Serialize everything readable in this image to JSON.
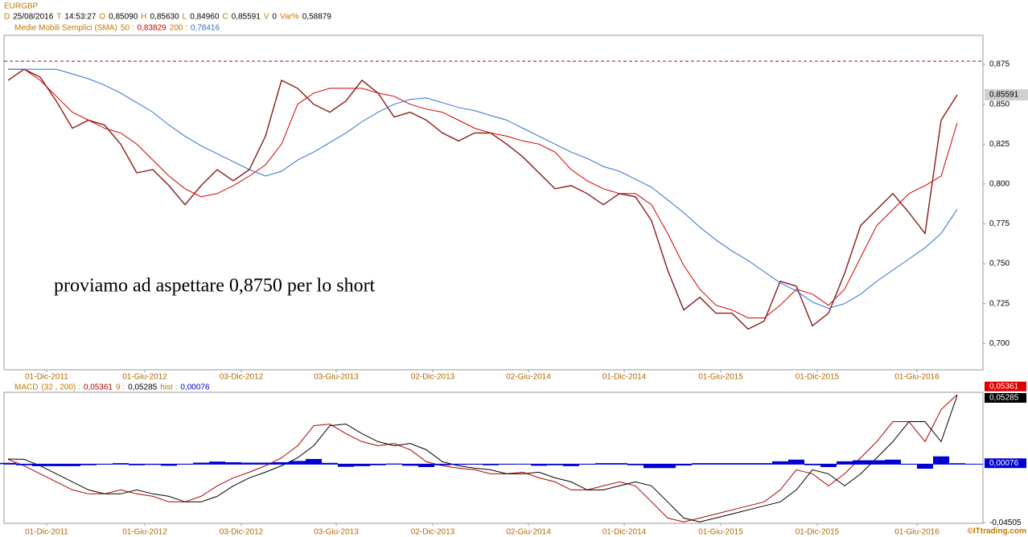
{
  "symbol": "EURGBP",
  "quote": [
    {
      "key": "D",
      "text": "25/08/2016"
    },
    {
      "key": "T",
      "text": "14:53:27"
    },
    {
      "key": "O",
      "text": "0,85090"
    },
    {
      "key": "H",
      "text": "0,85630"
    },
    {
      "key": "L",
      "text": "0,84960"
    },
    {
      "key": "C",
      "text": "0,85591"
    },
    {
      "key": "V",
      "text": "0"
    },
    {
      "key": "Var%",
      "text": "0,58879"
    }
  ],
  "watermark": "©ITtrading.com",
  "chart_data": [
    {
      "type": "line",
      "title": "Medie Mobili Semplici (SMA)",
      "annotation": "proviamo ad aspettare 0,8750 per lo short",
      "hline": {
        "value": 0.877,
        "color": "#8b1a1a"
      },
      "last_label": {
        "value": 0.85591,
        "label": "0,85591"
      },
      "xlim": [
        -0.25,
        60.6
      ],
      "ylim": [
        0.6835,
        0.8932
      ],
      "xticks": [
        {
          "value": 2.4,
          "label": "01-Dic-2011"
        },
        {
          "value": 8.5,
          "label": "01-Giu-2012"
        },
        {
          "value": 14.5,
          "label": "03-Dic-2012"
        },
        {
          "value": 20.4,
          "label": "03-Giu-2013"
        },
        {
          "value": 26.4,
          "label": "02-Dic-2013"
        },
        {
          "value": 32.35,
          "label": "02-Giu-2014"
        },
        {
          "value": 38.3,
          "label": "01-Dic-2014"
        },
        {
          "value": 44.3,
          "label": "01-Giu-2015"
        },
        {
          "value": 50.3,
          "label": "01-Dic-2015"
        },
        {
          "value": 56.5,
          "label": "01-Giu-2016"
        }
      ],
      "yticks": [
        {
          "value": 0.875,
          "label": "0,875"
        },
        {
          "value": 0.85,
          "label": "0,850"
        },
        {
          "value": 0.825,
          "label": "0,825"
        },
        {
          "value": 0.8,
          "label": "0,800"
        },
        {
          "value": 0.775,
          "label": "0,775"
        },
        {
          "value": 0.75,
          "label": "0,750"
        },
        {
          "value": 0.725,
          "label": "0,725"
        },
        {
          "value": 0.7,
          "label": "0,700"
        }
      ],
      "grid": false,
      "series": [
        {
          "color": "#8b1a1a",
          "values": [
            0.865,
            0.872,
            0.867,
            0.852,
            0.835,
            0.84,
            0.837,
            0.825,
            0.807,
            0.809,
            0.799,
            0.787,
            0.799,
            0.809,
            0.802,
            0.809,
            0.83,
            0.865,
            0.86,
            0.85,
            0.845,
            0.852,
            0.865,
            0.857,
            0.842,
            0.845,
            0.84,
            0.832,
            0.827,
            0.832,
            0.832,
            0.825,
            0.817,
            0.807,
            0.797,
            0.799,
            0.794,
            0.787,
            0.794,
            0.792,
            0.777,
            0.746,
            0.721,
            0.729,
            0.719,
            0.719,
            0.709,
            0.714,
            0.739,
            0.736,
            0.711,
            0.719,
            0.744,
            0.774,
            0.784,
            0.794,
            0.782,
            0.769,
            0.84,
            0.85591
          ]
        },
        {
          "name": "50 :",
          "value_label": "0,83829",
          "color": "#d00000",
          "values": [
            0.872,
            0.872,
            0.865,
            0.855,
            0.845,
            0.84,
            0.835,
            0.832,
            0.825,
            0.815,
            0.805,
            0.797,
            0.792,
            0.794,
            0.799,
            0.805,
            0.812,
            0.825,
            0.85,
            0.857,
            0.86,
            0.86,
            0.86,
            0.857,
            0.855,
            0.85,
            0.847,
            0.845,
            0.84,
            0.835,
            0.832,
            0.83,
            0.827,
            0.825,
            0.82,
            0.809,
            0.802,
            0.797,
            0.794,
            0.794,
            0.787,
            0.769,
            0.749,
            0.734,
            0.724,
            0.721,
            0.716,
            0.716,
            0.724,
            0.734,
            0.731,
            0.724,
            0.734,
            0.754,
            0.774,
            0.784,
            0.794,
            0.799,
            0.805,
            0.83829
          ]
        },
        {
          "name": "200 :",
          "value_label": "0,78416",
          "color": "#2f6fd0",
          "values": [
            0.872,
            0.872,
            0.872,
            0.872,
            0.869,
            0.866,
            0.862,
            0.857,
            0.851,
            0.845,
            0.837,
            0.83,
            0.824,
            0.819,
            0.814,
            0.809,
            0.805,
            0.808,
            0.815,
            0.82,
            0.826,
            0.832,
            0.839,
            0.845,
            0.85,
            0.853,
            0.854,
            0.851,
            0.848,
            0.846,
            0.843,
            0.84,
            0.835,
            0.83,
            0.825,
            0.82,
            0.816,
            0.811,
            0.808,
            0.803,
            0.798,
            0.79,
            0.782,
            0.773,
            0.765,
            0.758,
            0.752,
            0.745,
            0.738,
            0.733,
            0.726,
            0.722,
            0.725,
            0.731,
            0.739,
            0.746,
            0.753,
            0.76,
            0.769,
            0.78416
          ]
        }
      ]
    },
    {
      "type": "line",
      "title": "MACD",
      "xlim": [
        -0.25,
        60.6
      ],
      "ylim": [
        -0.0455,
        0.0553
      ],
      "xticks": [
        {
          "value": 2.4,
          "label": "01-Dic-2011"
        },
        {
          "value": 8.5,
          "label": "01-Giu-2012"
        },
        {
          "value": 14.5,
          "label": "03-Dic-2012"
        },
        {
          "value": 20.4,
          "label": "03-Giu-2013"
        },
        {
          "value": 26.4,
          "label": "02-Dic-2013"
        },
        {
          "value": 32.35,
          "label": "02-Giu-2014"
        },
        {
          "value": 38.3,
          "label": "01-Dic-2014"
        },
        {
          "value": 44.3,
          "label": "01-Giu-2015"
        },
        {
          "value": 50.3,
          "label": "01-Dic-2015"
        },
        {
          "value": 56.5,
          "label": "01-Giu-2016"
        }
      ],
      "yticks": [
        {
          "value": -0.04505,
          "label": "-0,04505"
        }
      ],
      "grid": false,
      "series": [
        {
          "name": "(32 , 200) :",
          "value_label": "0,05361",
          "color": "#b00000",
          "box": "#e00000",
          "values": [
            0.0037,
            -0.0012,
            -0.0074,
            -0.0136,
            -0.0198,
            -0.0228,
            -0.0228,
            -0.0198,
            -0.0228,
            -0.0247,
            -0.029,
            -0.029,
            -0.0247,
            -0.0167,
            -0.0105,
            -0.0062,
            -0.0012,
            0.0049,
            0.0142,
            0.0296,
            0.0309,
            0.0235,
            0.0173,
            0.0142,
            0.016,
            0.0111,
            0.0019,
            -0.0012,
            -0.0031,
            -0.0043,
            -0.0074,
            -0.0074,
            -0.0062,
            -0.0105,
            -0.0136,
            -0.0198,
            -0.0198,
            -0.0167,
            -0.0136,
            -0.0167,
            -0.029,
            -0.0414,
            -0.0444,
            -0.0414,
            -0.0383,
            -0.0352,
            -0.0321,
            -0.029,
            -0.0198,
            -0.0043,
            -0.0074,
            -0.0167,
            -0.0074,
            0.0049,
            0.0173,
            0.0327,
            0.0327,
            0.0173,
            0.042,
            0.05361
          ]
        },
        {
          "name": "9 :",
          "value_label": "0,05285",
          "color": "#000000",
          "box": "#000000",
          "values": [
            0.004,
            0.0037,
            -0.0012,
            -0.0074,
            -0.0136,
            -0.0198,
            -0.0228,
            -0.0228,
            -0.0198,
            -0.0228,
            -0.0247,
            -0.029,
            -0.029,
            -0.0247,
            -0.0167,
            -0.0105,
            -0.0062,
            -0.0012,
            0.0049,
            0.0142,
            0.0296,
            0.0309,
            0.0235,
            0.0173,
            0.0142,
            0.016,
            0.0111,
            0.0019,
            -0.0012,
            -0.0031,
            -0.0043,
            -0.0074,
            -0.0074,
            -0.0062,
            -0.0105,
            -0.0136,
            -0.0198,
            -0.0198,
            -0.0167,
            -0.0136,
            -0.0167,
            -0.029,
            -0.0414,
            -0.0444,
            -0.0414,
            -0.0383,
            -0.0352,
            -0.0321,
            -0.029,
            -0.0198,
            -0.0043,
            -0.0074,
            -0.0167,
            -0.0074,
            0.0049,
            0.0173,
            0.0327,
            0.0327,
            0.0173,
            0.05285
          ]
        },
        {
          "name": "hist :",
          "value_label": "0,00076",
          "color": "#0000d0",
          "box": "#0000d0",
          "kind": "bar",
          "values": [
            0.001,
            -0.0008,
            -0.0015,
            -0.0015,
            -0.0015,
            -0.0008,
            0,
            0.0008,
            -0.0008,
            -0.0005,
            -0.0012,
            0,
            0.0012,
            0.002,
            0.0015,
            0.0012,
            0.0012,
            0.0015,
            0.0025,
            0.004,
            0.001,
            -0.002,
            -0.0015,
            -0.0008,
            0.0005,
            -0.0012,
            -0.0022,
            -0.0008,
            -0.0005,
            -0.0003,
            -0.0008,
            0,
            0.0003,
            -0.0012,
            -0.0008,
            -0.0015,
            0,
            0.0008,
            0.0008,
            -0.0008,
            -0.003,
            -0.003,
            -0.001,
            0.0008,
            0.0008,
            0.0008,
            0.0008,
            0.0008,
            0.0022,
            0.0035,
            -0.0008,
            -0.0022,
            0.0022,
            0.003,
            0.003,
            0.0035,
            0,
            -0.0035,
            0.006,
            0.00076
          ]
        }
      ]
    }
  ]
}
